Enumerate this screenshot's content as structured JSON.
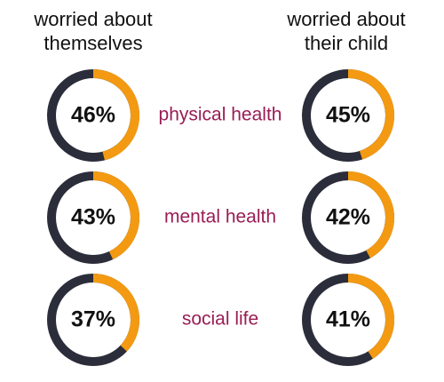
{
  "chart_data": {
    "type": "donut",
    "categories": [
      "physical health",
      "mental health",
      "social life"
    ],
    "category_color": "#9a1d55",
    "track_color": "#2b2d3a",
    "series": [
      {
        "name": "worried about themselves",
        "color": "#f39a12",
        "values": [
          46,
          43,
          37
        ],
        "value_labels": [
          "46%",
          "43%",
          "37%"
        ]
      },
      {
        "name": "worried about their child",
        "color": "#f39a12",
        "values": [
          45,
          42,
          41
        ],
        "value_labels": [
          "45%",
          "42%",
          "41%"
        ]
      }
    ]
  }
}
